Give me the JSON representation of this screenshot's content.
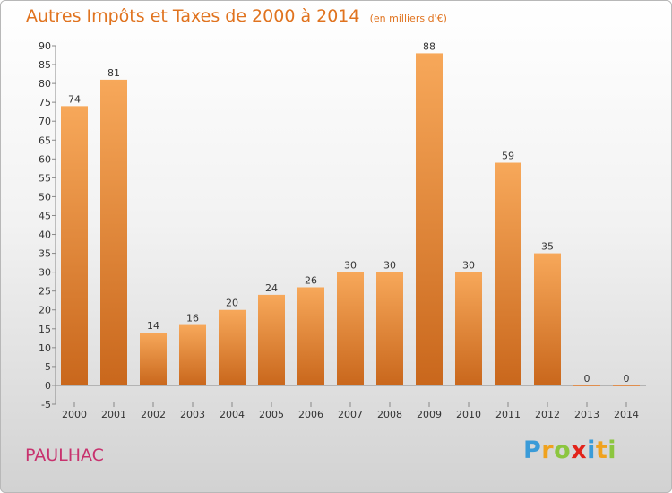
{
  "header": {
    "title": "Autres Impôts et Taxes de 2000 à 2014",
    "subtitle": "(en milliers d'€)"
  },
  "footer": {
    "commune": "PAULHAC",
    "logo_letters": [
      {
        "char": "P",
        "color": "#3a9bd8"
      },
      {
        "char": "r",
        "color": "#f0a21e"
      },
      {
        "char": "o",
        "color": "#8cc63f"
      },
      {
        "char": "x",
        "color": "#e2231a"
      },
      {
        "char": "i",
        "color": "#3a9bd8"
      },
      {
        "char": "t",
        "color": "#f0a21e"
      },
      {
        "char": "i",
        "color": "#8cc63f"
      }
    ]
  },
  "colors": {
    "bar_top": "#f7a85a",
    "bar_bottom": "#c9671c",
    "title": "#e0731f",
    "commune": "#c8326e"
  },
  "chart_data": {
    "type": "bar",
    "title": "Autres Impôts et Taxes de 2000 à 2014",
    "subtitle": "(en milliers d'€)",
    "categories": [
      "2000",
      "2001",
      "2002",
      "2003",
      "2004",
      "2005",
      "2006",
      "2007",
      "2008",
      "2009",
      "2010",
      "2011",
      "2012",
      "2013",
      "2014"
    ],
    "values": [
      74,
      81,
      14,
      16,
      20,
      24,
      26,
      30,
      30,
      88,
      30,
      59,
      35,
      0,
      0
    ],
    "ylim": [
      -5,
      90
    ],
    "yticks": [
      -5,
      0,
      5,
      10,
      15,
      20,
      25,
      30,
      35,
      40,
      45,
      50,
      55,
      60,
      65,
      70,
      75,
      80,
      85,
      90
    ],
    "grid": false,
    "legend": "none"
  }
}
